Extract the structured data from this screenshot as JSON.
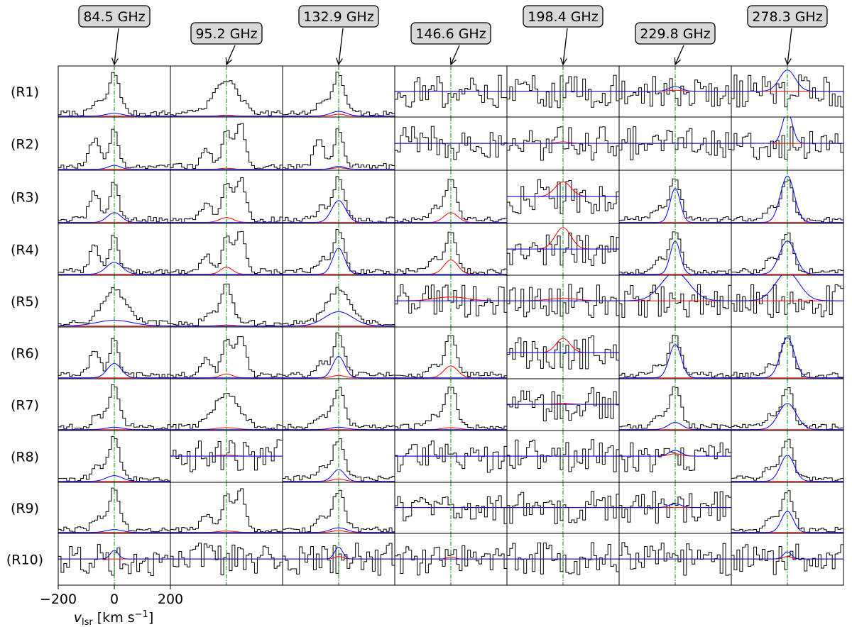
{
  "freq_labels": [
    "84.5 GHz",
    "95.2 GHz",
    "132.9 GHz",
    "146.6 GHz",
    "198.4 GHz",
    "229.8 GHz",
    "278.3 GHz"
  ],
  "row_labels": [
    "(R1)",
    "(R2)",
    "(R3)",
    "(R4)",
    "(R5)",
    "(R6)",
    "(R7)",
    "(R8)",
    "(R9)",
    "(R10)"
  ],
  "colors": {
    "spectrum": "#000000",
    "fit_blue": "#0000ff",
    "fit_red": "#ff0000",
    "line_marker": "#2ca02c",
    "label_box_fill": "#d9d9d9",
    "label_box_edge": "#000000"
  },
  "axis": {
    "xlim": [
      -200,
      200
    ],
    "xticks": [
      -200,
      0,
      200
    ],
    "xtick_labels": [
      "−200",
      "0",
      "200"
    ],
    "xlabel": "v_lsr [km s^-1]"
  },
  "chart_data": {
    "type": "line",
    "grid": "7 columns x 10 rows of spectra panels",
    "columns": [
      "84.5 GHz",
      "95.2 GHz",
      "132.9 GHz",
      "146.6 GHz",
      "198.4 GHz",
      "229.8 GHz",
      "278.3 GHz"
    ],
    "rows": [
      "(R1)",
      "(R2)",
      "(R3)",
      "(R4)",
      "(R5)",
      "(R6)",
      "(R7)",
      "(R8)",
      "(R9)",
      "(R10)"
    ],
    "x_unit": "km s^-1",
    "xlim": [
      -200,
      200
    ],
    "line_marker_velocity": 0,
    "series": [
      {
        "name": "spectrum",
        "style": "black step histogram"
      },
      {
        "name": "blue fit",
        "style": "blue gaussian"
      },
      {
        "name": "red fit",
        "style": "red gaussian"
      },
      {
        "name": "line velocity",
        "style": "green dash-dot vertical at v=0"
      }
    ]
  }
}
